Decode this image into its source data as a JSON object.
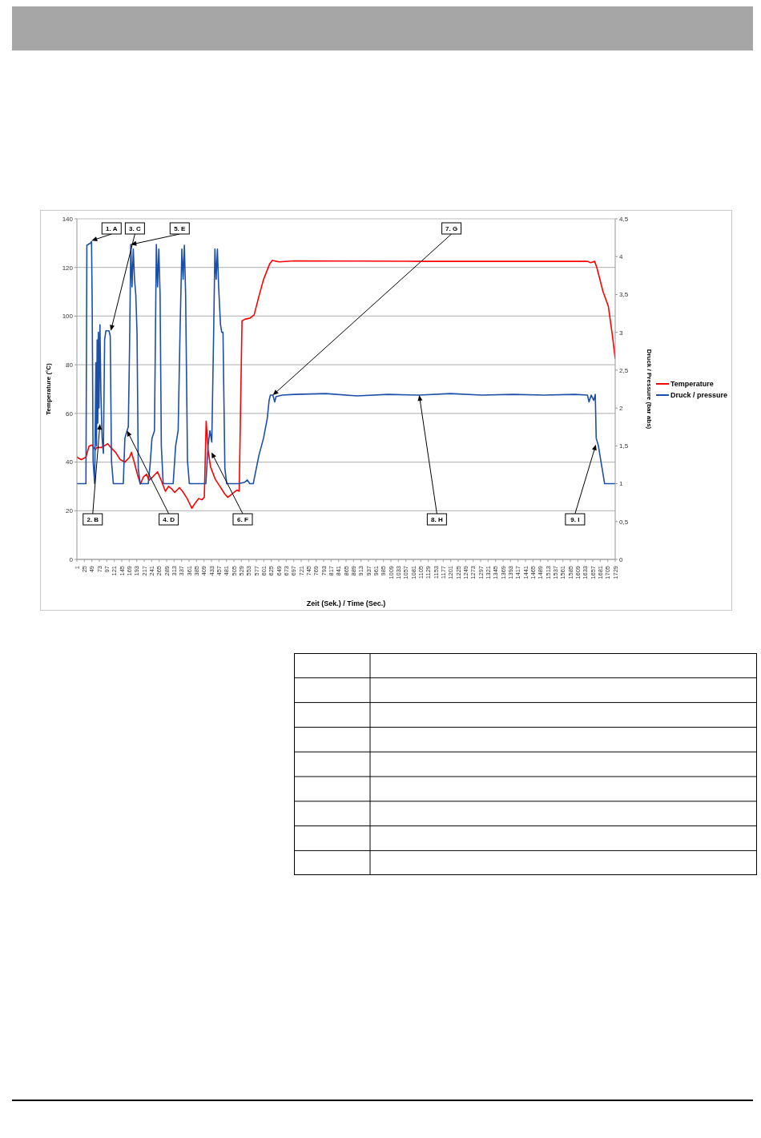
{
  "chart_data": {
    "type": "line",
    "xlabel": "Zeit (Sek.) / Time (Sec.)",
    "ylabel": "Temperature (°C)",
    "y2label": "Druck / Pressure (bar abs)",
    "xlim": [
      1,
      1729
    ],
    "xticks": [
      1,
      25,
      49,
      73,
      97,
      121,
      145,
      169,
      193,
      217,
      241,
      265,
      289,
      313,
      337,
      361,
      385,
      409,
      433,
      457,
      481,
      505,
      529,
      553,
      577,
      601,
      625,
      649,
      673,
      697,
      721,
      745,
      769,
      793,
      817,
      841,
      865,
      889,
      913,
      937,
      961,
      985,
      1009,
      1033,
      1057,
      1081,
      1105,
      1129,
      1153,
      1177,
      1201,
      1225,
      1249,
      1273,
      1297,
      1321,
      1345,
      1369,
      1393,
      1417,
      1441,
      1465,
      1489,
      1513,
      1537,
      1561,
      1585,
      1609,
      1633,
      1657,
      1681,
      1705,
      1729
    ],
    "ylim": [
      0,
      140
    ],
    "yticks": [
      0,
      20,
      40,
      60,
      80,
      100,
      120,
      140
    ],
    "y2lim": [
      0,
      4.5
    ],
    "y2ticks": [
      0,
      {
        "value": 0.5,
        "label": "0,5"
      },
      1,
      {
        "value": 1.5,
        "label": "1,5"
      },
      2,
      {
        "value": 2.5,
        "label": "2,5"
      },
      3,
      {
        "value": 3.5,
        "label": "3,5"
      },
      4,
      {
        "value": 4.5,
        "label": "4,5"
      }
    ],
    "grid": "y",
    "legend": "right",
    "marker": "none",
    "line_style": "solid",
    "series": [
      {
        "name": "Temperature",
        "color": "#ff0000",
        "x": [
          1,
          15,
          30,
          40,
          50,
          60,
          65,
          80,
          100,
          110,
          125,
          140,
          155,
          170,
          176,
          185,
          195,
          205,
          215,
          225,
          232,
          245,
          260,
          270,
          285,
          295,
          305,
          315,
          330,
          340,
          355,
          370,
          380,
          392,
          402,
          410,
          416,
          422,
          430,
          445,
          460,
          475,
          485,
          500,
          515,
          522,
          531,
          540,
          557,
          570,
          585,
          600,
          620,
          628,
          650,
          700,
          900,
          1100,
          1300,
          1500,
          1640,
          1650,
          1663,
          1670,
          1690,
          1707,
          1720,
          1729
        ],
        "values": [
          42,
          41,
          42,
          46.5,
          47,
          45,
          46,
          46,
          47.5,
          46,
          44,
          41,
          40,
          42,
          44,
          40,
          35,
          31,
          34,
          35,
          32.5,
          34,
          36,
          33,
          28,
          30,
          29,
          27.5,
          29.5,
          28,
          25,
          21,
          23,
          25,
          24.5,
          25.5,
          56.8,
          45,
          38,
          33,
          30,
          27,
          25.5,
          27,
          28.5,
          28,
          98,
          98.7,
          99.2,
          100.5,
          108,
          115,
          121.5,
          122.9,
          122.3,
          122.7,
          122.6,
          122.5,
          122.5,
          122.5,
          122.5,
          122,
          122.5,
          120,
          110,
          104,
          92,
          82.5
        ]
      },
      {
        "name": "Druck / pressure",
        "color": "#1c4fa8",
        "axis": "y2",
        "x": [
          1,
          30,
          33,
          45,
          48,
          50,
          53,
          58,
          62,
          64,
          66,
          68,
          70,
          72,
          75,
          78,
          82,
          86,
          90,
          94,
          104,
          108,
          112,
          118,
          150,
          155,
          162,
          166,
          170,
          174,
          178,
          182,
          186,
          190,
          194,
          198,
          204,
          230,
          236,
          242,
          250,
          256,
          260,
          264,
          268,
          272,
          278,
          310,
          318,
          326,
          332,
          338,
          342,
          346,
          350,
          356,
          362,
          415,
          422,
          428,
          434,
          440,
          444,
          448,
          452,
          456,
          462,
          466,
          470,
          476,
          482,
          520,
          540,
          548,
          556,
          567,
          585,
          600,
          612,
          618,
          622,
          630,
          636,
          640,
          660,
          700,
          800,
          900,
          1000,
          1100,
          1200,
          1300,
          1400,
          1500,
          1600,
          1640,
          1645,
          1652,
          1660,
          1665,
          1668,
          1675,
          1685,
          1695,
          1729
        ],
        "values": [
          1,
          1,
          4.15,
          4.18,
          4.2,
          3.4,
          1.3,
          1,
          2.6,
          1.5,
          2.9,
          1.8,
          3,
          2,
          3.1,
          2.2,
          1.6,
          1.4,
          2.9,
          3.02,
          3.02,
          2.95,
          1.3,
          1,
          1,
          1.6,
          1.7,
          1.75,
          2.8,
          4.16,
          3.6,
          4.1,
          3.7,
          3.5,
          3,
          1.2,
          1,
          1,
          1.25,
          1.6,
          1.7,
          4.16,
          3.6,
          4.1,
          3.5,
          1.5,
          1,
          1,
          1.5,
          1.7,
          3,
          4.1,
          3.7,
          4.15,
          3.5,
          1.3,
          1,
          1,
          1.5,
          1.7,
          1.55,
          3,
          4.1,
          3.7,
          4.1,
          3.6,
          3.1,
          3,
          3,
          1.2,
          1,
          1,
          1.02,
          1.05,
          1,
          1,
          1.37,
          1.6,
          1.86,
          2.1,
          2.17,
          2.17,
          2.08,
          2.15,
          2.17,
          2.18,
          2.19,
          2.16,
          2.18,
          2.17,
          2.19,
          2.17,
          2.18,
          2.17,
          2.18,
          2.17,
          2.08,
          2.17,
          2.1,
          2.18,
          1.6,
          1.5,
          1.25,
          1,
          1
        ]
      }
    ],
    "annotations": [
      {
        "text": "1. A",
        "x": 48,
        "y": 131
      },
      {
        "text": "2. B",
        "x": 75,
        "y": 55.7
      },
      {
        "text": "3. C",
        "x": 110,
        "y": 94
      },
      {
        "text": "4. D",
        "x": 162,
        "y": 52.9
      },
      {
        "text": "5. E",
        "x": 174,
        "y": 129.4
      },
      {
        "text": "6. F",
        "x": 433,
        "y": 44
      },
      {
        "text": "7. G",
        "x": 630,
        "y": 67.5
      },
      {
        "text": "8. H",
        "x": 1100,
        "y": 67.5
      },
      {
        "text": "9. I",
        "x": 1667,
        "y": 47.2
      }
    ]
  }
}
